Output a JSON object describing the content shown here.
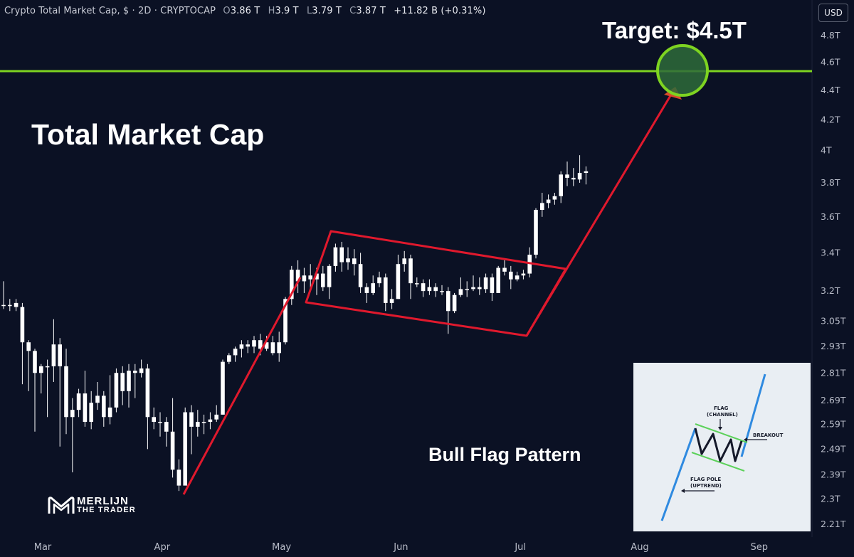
{
  "header": {
    "title": "Crypto Total Market Cap, $ · 2D · CRYPTOCAP",
    "o_label": "O",
    "o_value": "3.86 T",
    "h_label": "H",
    "h_value": "3.9 T",
    "l_label": "L",
    "l_value": "3.79 T",
    "c_label": "C",
    "c_value": "3.87 T",
    "change": "+11.82 B (+0.31%)"
  },
  "currency_button": "USD",
  "annotations": {
    "title": "Total Market Cap",
    "target": "Target: $4.5T",
    "pattern": "Bull Flag Pattern"
  },
  "logo": {
    "line1": "MERLIJN",
    "line2": "THE TRADER"
  },
  "inset": {
    "flag": "FLAG",
    "channel": "(CHANNEL)",
    "breakout": "BREAKOUT",
    "flag_pole": "FLAG POLE",
    "uptrend": "(UPTREND)"
  },
  "colors": {
    "background": "#0b1124",
    "candle": "#ffffff",
    "pattern_lines": "#e0192d",
    "target_line": "#7ed321",
    "target_circle": "#2e6b3a",
    "inset_pole": "#2f8ae0",
    "inset_channel": "#5cd15a"
  },
  "chart_data": {
    "type": "candlestick",
    "title": "Crypto Total Market Cap",
    "y_scale": "log",
    "y_ticks": [
      "4.8T",
      "4.6T",
      "4.4T",
      "4.2T",
      "4T",
      "3.8T",
      "3.6T",
      "3.4T",
      "3.2T",
      "3.05T",
      "2.93T",
      "2.81T",
      "2.69T",
      "2.59T",
      "2.49T",
      "2.39T",
      "2.3T",
      "2.21T"
    ],
    "x_ticks": [
      "Mar",
      "Apr",
      "May",
      "Jun",
      "Jul",
      "Aug",
      "Sep"
    ],
    "target_level": 4.5,
    "candles": [
      [
        3.13,
        3.13,
        3.25,
        3.11
      ],
      [
        3.13,
        3.13,
        3.16,
        3.1
      ],
      [
        3.14,
        3.12,
        3.16,
        3.1
      ],
      [
        3.12,
        2.95,
        3.14,
        2.76
      ],
      [
        2.95,
        2.91,
        2.96,
        2.73
      ],
      [
        2.91,
        2.81,
        2.92,
        2.56
      ],
      [
        2.81,
        2.84,
        2.85,
        2.72
      ],
      [
        2.84,
        2.84,
        2.87,
        2.62
      ],
      [
        2.84,
        2.94,
        3.06,
        2.77
      ],
      [
        2.94,
        2.84,
        2.97,
        2.5
      ],
      [
        2.84,
        2.62,
        2.92,
        2.55
      ],
      [
        2.62,
        2.65,
        2.7,
        2.4
      ],
      [
        2.65,
        2.72,
        2.74,
        2.62
      ],
      [
        2.72,
        2.6,
        2.82,
        2.58
      ],
      [
        2.6,
        2.68,
        2.73,
        2.57
      ],
      [
        2.68,
        2.71,
        2.77,
        2.65
      ],
      [
        2.71,
        2.62,
        2.73,
        2.58
      ],
      [
        2.62,
        2.66,
        2.8,
        2.59
      ],
      [
        2.66,
        2.81,
        2.83,
        2.64
      ],
      [
        2.81,
        2.73,
        2.84,
        2.67
      ],
      [
        2.73,
        2.82,
        2.85,
        2.66
      ],
      [
        2.82,
        2.81,
        2.85,
        2.7
      ],
      [
        2.81,
        2.83,
        2.87,
        2.79
      ],
      [
        2.83,
        2.62,
        2.85,
        2.49
      ],
      [
        2.62,
        2.6,
        2.66,
        2.57
      ],
      [
        2.6,
        2.6,
        2.64,
        2.54
      ],
      [
        2.6,
        2.56,
        2.62,
        2.5
      ],
      [
        2.56,
        2.41,
        2.7,
        2.38
      ],
      [
        2.41,
        2.35,
        2.45,
        2.33
      ],
      [
        2.35,
        2.64,
        2.66,
        2.39
      ],
      [
        2.64,
        2.58,
        2.67,
        2.47
      ],
      [
        2.58,
        2.6,
        2.65,
        2.54
      ],
      [
        2.6,
        2.6,
        2.63,
        2.55
      ],
      [
        2.6,
        2.61,
        2.64,
        2.57
      ],
      [
        2.61,
        2.63,
        2.67,
        2.6
      ],
      [
        2.63,
        2.86,
        2.87,
        2.63
      ],
      [
        2.86,
        2.89,
        2.9,
        2.85
      ],
      [
        2.89,
        2.92,
        2.93,
        2.86
      ],
      [
        2.92,
        2.94,
        2.96,
        2.88
      ],
      [
        2.94,
        2.93,
        2.96,
        2.9
      ],
      [
        2.93,
        2.96,
        2.98,
        2.9
      ],
      [
        2.96,
        2.92,
        2.99,
        2.89
      ],
      [
        2.92,
        2.95,
        2.98,
        2.91
      ],
      [
        2.95,
        2.9,
        2.98,
        2.89
      ],
      [
        2.9,
        2.95,
        3.0,
        2.86
      ],
      [
        2.95,
        3.16,
        3.17,
        2.94
      ],
      [
        3.16,
        3.31,
        3.33,
        3.13
      ],
      [
        3.31,
        3.25,
        3.36,
        3.19
      ],
      [
        3.25,
        3.28,
        3.32,
        3.19
      ],
      [
        3.28,
        3.26,
        3.34,
        3.2
      ],
      [
        3.26,
        3.29,
        3.32,
        3.18
      ],
      [
        3.29,
        3.22,
        3.33,
        3.2
      ],
      [
        3.22,
        3.33,
        3.34,
        3.16
      ],
      [
        3.33,
        3.43,
        3.45,
        3.3
      ],
      [
        3.43,
        3.35,
        3.46,
        3.3
      ],
      [
        3.35,
        3.37,
        3.43,
        3.31
      ],
      [
        3.37,
        3.34,
        3.42,
        3.28
      ],
      [
        3.34,
        3.22,
        3.4,
        3.19
      ],
      [
        3.22,
        3.19,
        3.24,
        3.14
      ],
      [
        3.19,
        3.24,
        3.28,
        3.18
      ],
      [
        3.24,
        3.27,
        3.3,
        3.22
      ],
      [
        3.27,
        3.14,
        3.29,
        3.1
      ],
      [
        3.14,
        3.16,
        3.21,
        3.11
      ],
      [
        3.16,
        3.34,
        3.39,
        3.16
      ],
      [
        3.34,
        3.37,
        3.41,
        3.3
      ],
      [
        3.37,
        3.24,
        3.39,
        3.16
      ],
      [
        3.24,
        3.24,
        3.27,
        3.22
      ],
      [
        3.24,
        3.2,
        3.26,
        3.17
      ],
      [
        3.2,
        3.22,
        3.26,
        3.18
      ],
      [
        3.22,
        3.2,
        3.24,
        3.17
      ],
      [
        3.2,
        3.2,
        3.23,
        3.18
      ],
      [
        3.2,
        3.1,
        3.22,
        2.99
      ],
      [
        3.1,
        3.18,
        3.19,
        3.09
      ],
      [
        3.18,
        3.21,
        3.27,
        3.17
      ],
      [
        3.21,
        3.21,
        3.25,
        3.17
      ],
      [
        3.21,
        3.22,
        3.28,
        3.2
      ],
      [
        3.22,
        3.21,
        3.27,
        3.18
      ],
      [
        3.21,
        3.27,
        3.29,
        3.19
      ],
      [
        3.27,
        3.19,
        3.29,
        3.15
      ],
      [
        3.19,
        3.32,
        3.33,
        3.19
      ],
      [
        3.32,
        3.3,
        3.36,
        3.28
      ],
      [
        3.3,
        3.26,
        3.33,
        3.21
      ],
      [
        3.26,
        3.28,
        3.3,
        3.25
      ],
      [
        3.28,
        3.29,
        3.31,
        3.26
      ],
      [
        3.29,
        3.39,
        3.43,
        3.27
      ],
      [
        3.39,
        3.64,
        3.65,
        3.37
      ],
      [
        3.64,
        3.68,
        3.74,
        3.6
      ],
      [
        3.68,
        3.7,
        3.73,
        3.65
      ],
      [
        3.7,
        3.72,
        3.74,
        3.67
      ],
      [
        3.72,
        3.85,
        3.87,
        3.68
      ],
      [
        3.85,
        3.83,
        3.93,
        3.78
      ],
      [
        3.83,
        3.82,
        3.89,
        3.78
      ],
      [
        3.82,
        3.86,
        3.97,
        3.8
      ],
      [
        3.86,
        3.87,
        3.9,
        3.79
      ]
    ]
  }
}
